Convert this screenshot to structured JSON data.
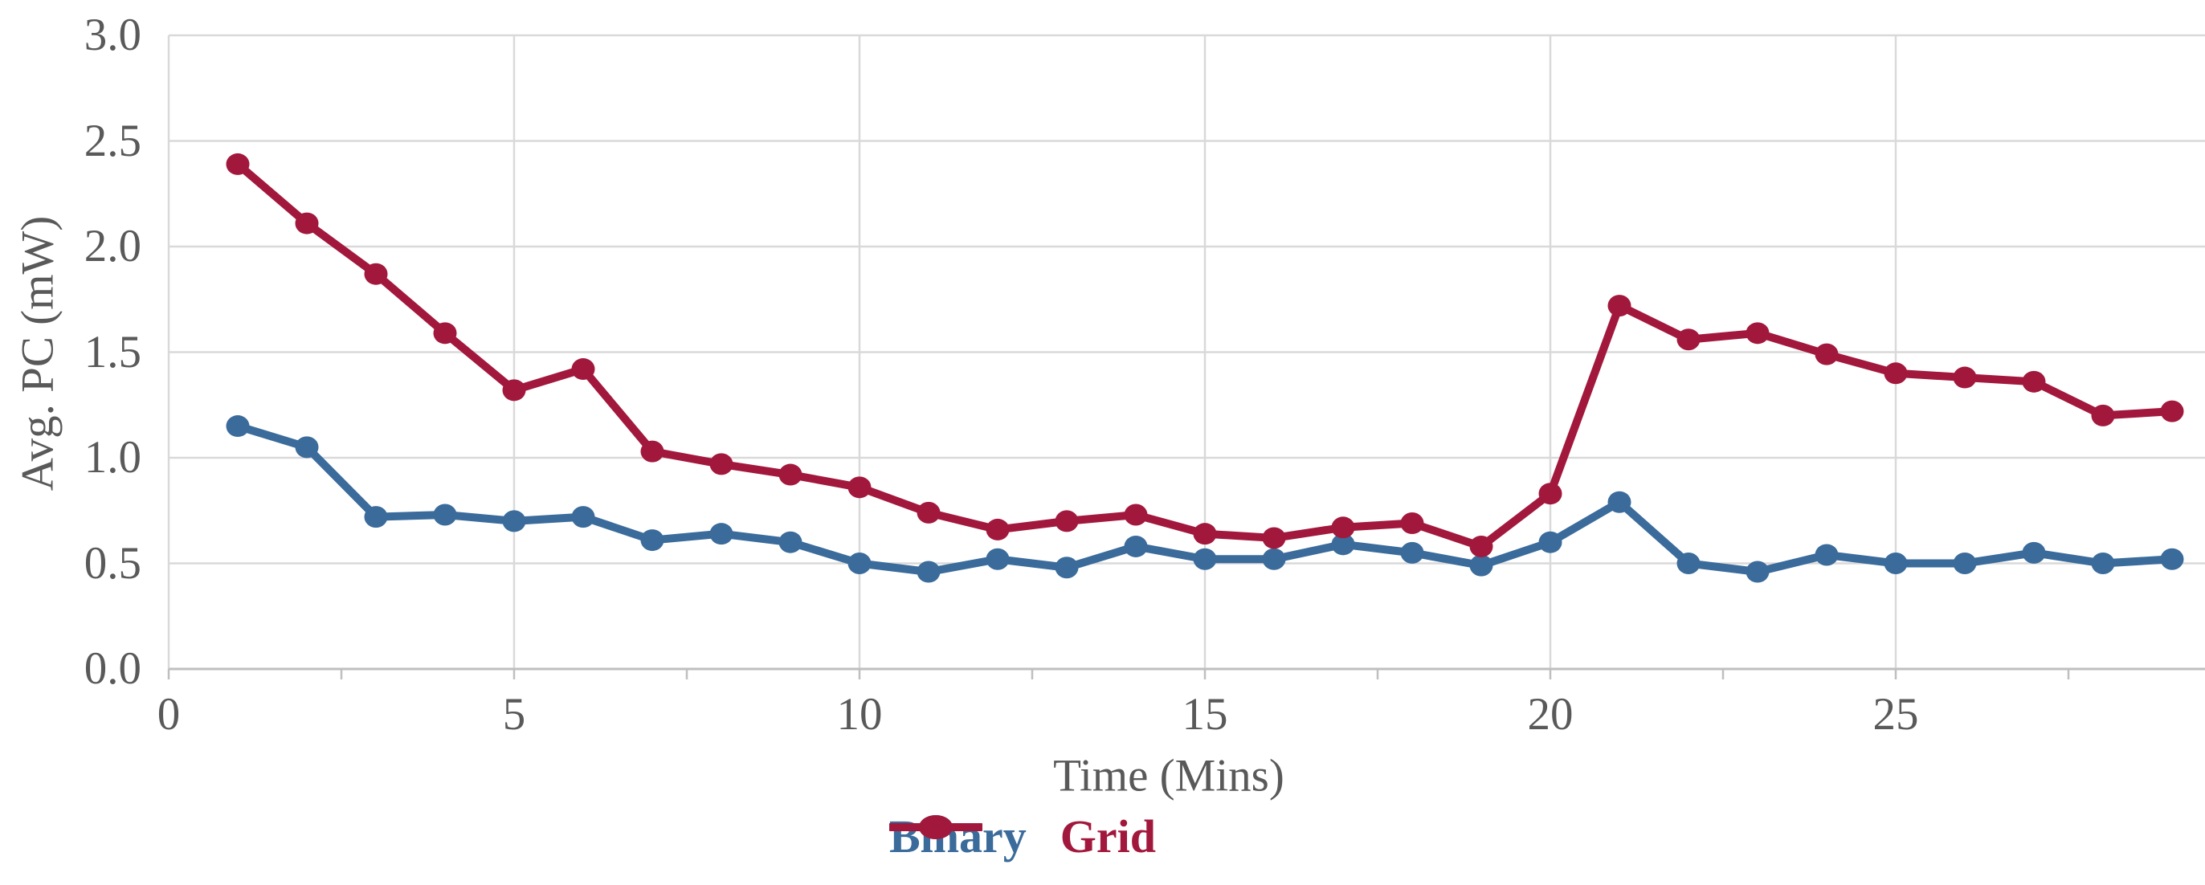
{
  "chart_data": {
    "type": "line",
    "title": "",
    "xlabel": "Time (Mins)",
    "ylabel": "Avg. PC (mW)",
    "x": [
      1,
      2,
      3,
      4,
      5,
      6,
      7,
      8,
      9,
      10,
      11,
      12,
      13,
      14,
      15,
      16,
      17,
      18,
      19,
      20,
      21,
      22,
      23,
      24,
      25,
      26,
      27,
      28,
      29
    ],
    "series": [
      {
        "name": "Binary",
        "color": "#3A6B9B",
        "values": [
          1.15,
          1.05,
          0.72,
          0.73,
          0.7,
          0.72,
          0.61,
          0.64,
          0.6,
          0.5,
          0.46,
          0.52,
          0.48,
          0.58,
          0.52,
          0.52,
          0.59,
          0.55,
          0.49,
          0.6,
          0.79,
          0.5,
          0.46,
          0.54,
          0.5,
          0.5,
          0.55,
          0.5,
          0.52
        ]
      },
      {
        "name": "Grid",
        "color": "#A2183C",
        "values": [
          2.39,
          2.11,
          1.87,
          1.59,
          1.32,
          1.42,
          1.03,
          0.97,
          0.92,
          0.86,
          0.74,
          0.66,
          0.7,
          0.73,
          0.64,
          0.62,
          0.67,
          0.69,
          0.58,
          0.83,
          1.72,
          1.56,
          1.59,
          1.49,
          1.4,
          1.38,
          1.36,
          1.2,
          1.22
        ]
      }
    ],
    "xlim": [
      0,
      29.5
    ],
    "ylim": [
      0.0,
      3.0
    ],
    "y_ticks": [
      "0.0",
      "0.5",
      "1.0",
      "1.5",
      "2.0",
      "2.5",
      "3.0"
    ],
    "y_tick_values": [
      0,
      0.5,
      1,
      1.5,
      2,
      2.5,
      3
    ],
    "x_ticks": [
      "0",
      "5",
      "10",
      "15",
      "20",
      "25"
    ],
    "x_tick_values": [
      0,
      5,
      10,
      15,
      20,
      25
    ],
    "minor_tick_step_minutes": 2.5,
    "grid": true,
    "legend_position": "bottom-center",
    "marker": "circle",
    "colors": {
      "gridline": "#D9D9D9",
      "axis_line": "#BFBFBF",
      "tick_mark": "#BFBFBF",
      "text": "#595959"
    }
  }
}
